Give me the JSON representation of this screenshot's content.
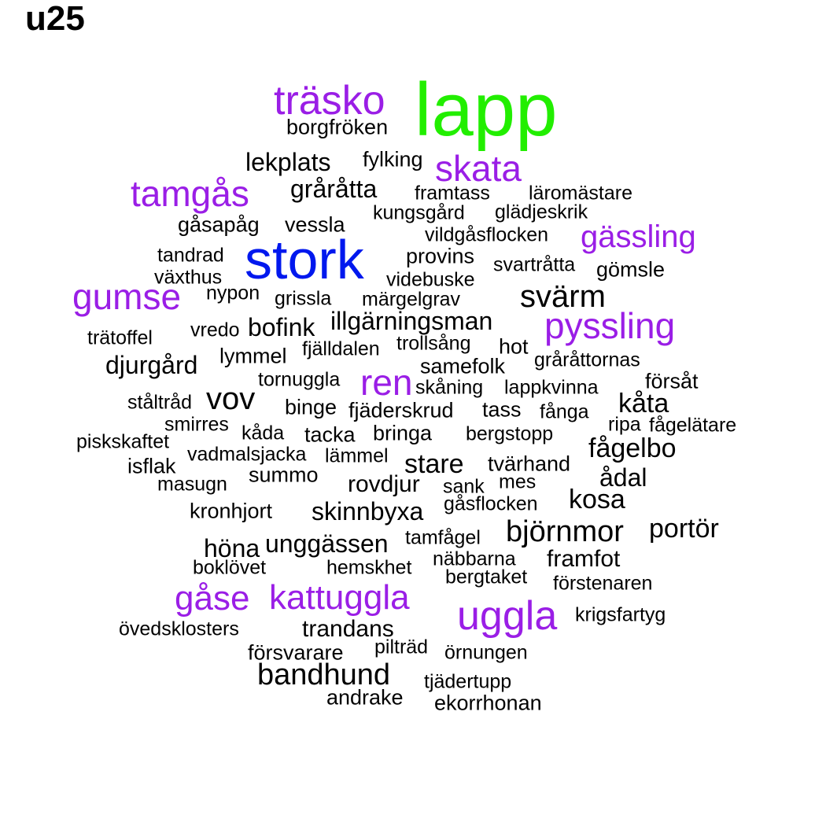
{
  "title": "u25",
  "colors": {
    "black": "#000000",
    "purple": "#9a1ee6",
    "green": "#22ee00",
    "blue": "#0018ee"
  },
  "words": [
    {
      "text": "lapp",
      "color": "green"
    },
    {
      "text": "träsko",
      "color": "purple"
    },
    {
      "text": "borgfröken",
      "color": "black"
    },
    {
      "text": "skata",
      "color": "purple"
    },
    {
      "text": "lekplats",
      "color": "black"
    },
    {
      "text": "fylking",
      "color": "black"
    },
    {
      "text": "tamgås",
      "color": "purple"
    },
    {
      "text": "gråråtta",
      "color": "black"
    },
    {
      "text": "framtass",
      "color": "black"
    },
    {
      "text": "läromästare",
      "color": "black"
    },
    {
      "text": "kungsgård",
      "color": "black"
    },
    {
      "text": "glädjeskrik",
      "color": "black"
    },
    {
      "text": "gåsapåg",
      "color": "black"
    },
    {
      "text": "vessla",
      "color": "black"
    },
    {
      "text": "vildgåsflocken",
      "color": "black"
    },
    {
      "text": "gässling",
      "color": "purple"
    },
    {
      "text": "stork",
      "color": "blue"
    },
    {
      "text": "tandrad",
      "color": "black"
    },
    {
      "text": "provins",
      "color": "black"
    },
    {
      "text": "svartråtta",
      "color": "black"
    },
    {
      "text": "gömsle",
      "color": "black"
    },
    {
      "text": "växthus",
      "color": "black"
    },
    {
      "text": "videbuske",
      "color": "black"
    },
    {
      "text": "gumse",
      "color": "purple"
    },
    {
      "text": "nypon",
      "color": "black"
    },
    {
      "text": "grissla",
      "color": "black"
    },
    {
      "text": "märgelgrav",
      "color": "black"
    },
    {
      "text": "svärm",
      "color": "black"
    },
    {
      "text": "illgärningsman",
      "color": "black"
    },
    {
      "text": "pyssling",
      "color": "purple"
    },
    {
      "text": "vredo",
      "color": "black"
    },
    {
      "text": "bofink",
      "color": "black"
    },
    {
      "text": "trätoffel",
      "color": "black"
    },
    {
      "text": "fjälldalen",
      "color": "black"
    },
    {
      "text": "trollsång",
      "color": "black"
    },
    {
      "text": "hot",
      "color": "black"
    },
    {
      "text": "lymmel",
      "color": "black"
    },
    {
      "text": "djurgård",
      "color": "black"
    },
    {
      "text": "samefolk",
      "color": "black"
    },
    {
      "text": "gråråttornas",
      "color": "black"
    },
    {
      "text": "tornuggla",
      "color": "black"
    },
    {
      "text": "ren",
      "color": "purple"
    },
    {
      "text": "försåt",
      "color": "black"
    },
    {
      "text": "skåning",
      "color": "black"
    },
    {
      "text": "lappkvinna",
      "color": "black"
    },
    {
      "text": "ståltråd",
      "color": "black"
    },
    {
      "text": "vov",
      "color": "black"
    },
    {
      "text": "kåta",
      "color": "black"
    },
    {
      "text": "binge",
      "color": "black"
    },
    {
      "text": "fjäderskrud",
      "color": "black"
    },
    {
      "text": "tass",
      "color": "black"
    },
    {
      "text": "fånga",
      "color": "black"
    },
    {
      "text": "smirres",
      "color": "black"
    },
    {
      "text": "ripa",
      "color": "black"
    },
    {
      "text": "fågelätare",
      "color": "black"
    },
    {
      "text": "kåda",
      "color": "black"
    },
    {
      "text": "tacka",
      "color": "black"
    },
    {
      "text": "bringa",
      "color": "black"
    },
    {
      "text": "bergstopp",
      "color": "black"
    },
    {
      "text": "piskskaftet",
      "color": "black"
    },
    {
      "text": "fågelbo",
      "color": "black"
    },
    {
      "text": "vadmalsjacka",
      "color": "black"
    },
    {
      "text": "lämmel",
      "color": "black"
    },
    {
      "text": "isflak",
      "color": "black"
    },
    {
      "text": "stare",
      "color": "black"
    },
    {
      "text": "tvärhand",
      "color": "black"
    },
    {
      "text": "summo",
      "color": "black"
    },
    {
      "text": "ådal",
      "color": "black"
    },
    {
      "text": "masugn",
      "color": "black"
    },
    {
      "text": "rovdjur",
      "color": "black"
    },
    {
      "text": "sank",
      "color": "black"
    },
    {
      "text": "mes",
      "color": "black"
    },
    {
      "text": "kosa",
      "color": "black"
    },
    {
      "text": "gåsflocken",
      "color": "black"
    },
    {
      "text": "kronhjort",
      "color": "black"
    },
    {
      "text": "skinnbyxa",
      "color": "black"
    },
    {
      "text": "björnmor",
      "color": "black"
    },
    {
      "text": "portör",
      "color": "black"
    },
    {
      "text": "tamfågel",
      "color": "black"
    },
    {
      "text": "höna",
      "color": "black"
    },
    {
      "text": "unggässen",
      "color": "black"
    },
    {
      "text": "framfot",
      "color": "black"
    },
    {
      "text": "näbbarna",
      "color": "black"
    },
    {
      "text": "boklövet",
      "color": "black"
    },
    {
      "text": "hemskhet",
      "color": "black"
    },
    {
      "text": "bergtaket",
      "color": "black"
    },
    {
      "text": "förstenaren",
      "color": "black"
    },
    {
      "text": "gåse",
      "color": "purple"
    },
    {
      "text": "kattuggla",
      "color": "purple"
    },
    {
      "text": "uggla",
      "color": "purple"
    },
    {
      "text": "krigsfartyg",
      "color": "black"
    },
    {
      "text": "övedsklosters",
      "color": "black"
    },
    {
      "text": "trandans",
      "color": "black"
    },
    {
      "text": "försvarare",
      "color": "black"
    },
    {
      "text": "pilträd",
      "color": "black"
    },
    {
      "text": "örnungen",
      "color": "black"
    },
    {
      "text": "bandhund",
      "color": "black"
    },
    {
      "text": "tjädertupp",
      "color": "black"
    },
    {
      "text": "andrake",
      "color": "black"
    },
    {
      "text": "ekorrhonan",
      "color": "black"
    }
  ]
}
